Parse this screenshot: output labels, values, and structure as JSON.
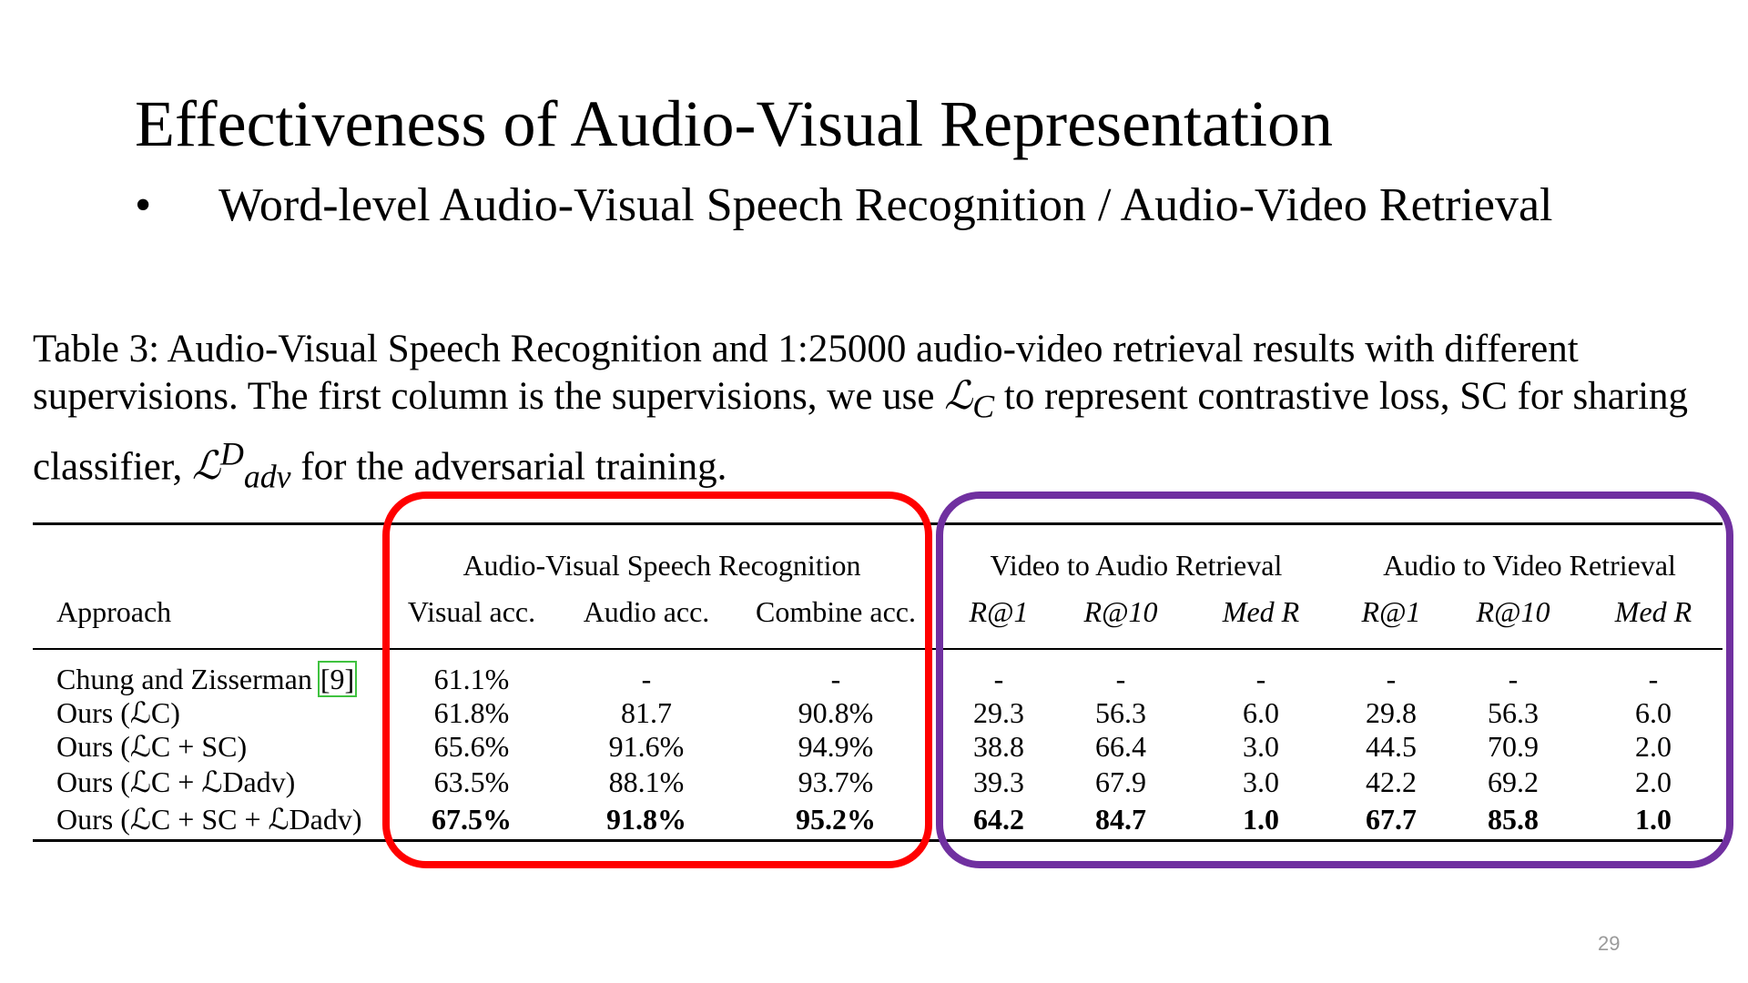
{
  "slide": {
    "title": "Effectiveness of Audio-Visual Representation",
    "bullet": "Word-level Audio-Visual Speech Recognition / Audio-Video Retrieval",
    "page_number": "29"
  },
  "caption": {
    "part1": "Table 3: Audio-Visual Speech Recognition and 1:25000 audio-video retrieval results with different supervisions. The first column is the supervisions, we use ",
    "lc": "ℒ",
    "lc_sub": "C",
    "part2": " to represent contrastive loss, SC for sharing classifier, ",
    "ladv": "ℒ",
    "ladv_sup": "D",
    "ladv_sub": "adv",
    "part3": " for the adversarial training."
  },
  "table": {
    "group_headers": [
      "Audio-Visual Speech Recognition",
      "Video to Audio Retrieval",
      "Audio to Video Retrieval"
    ],
    "columns": [
      "Approach",
      "Visual acc.",
      "Audio acc.",
      "Combine acc.",
      "R@1",
      "R@10",
      "Med R",
      "R@1",
      "R@10",
      "Med R"
    ],
    "rows": [
      {
        "approach": "Chung and Zisserman",
        "cite": "9",
        "values": [
          "61.1%",
          "-",
          "-",
          "-",
          "-",
          "-",
          "-",
          "-",
          "-"
        ]
      },
      {
        "approach": "Ours (ℒC)",
        "values": [
          "61.8%",
          "81.7",
          "90.8%",
          "29.3",
          "56.3",
          "6.0",
          "29.8",
          "56.3",
          "6.0"
        ]
      },
      {
        "approach": "Ours (ℒC + SC)",
        "values": [
          "65.6%",
          "91.6%",
          "94.9%",
          "38.8",
          "66.4",
          "3.0",
          "44.5",
          "70.9",
          "2.0"
        ]
      },
      {
        "approach": "Ours (ℒC + ℒDadv)",
        "values": [
          "63.5%",
          "88.1%",
          "93.7%",
          "39.3",
          "67.9",
          "3.0",
          "42.2",
          "69.2",
          "2.0"
        ]
      },
      {
        "approach": "Ours (ℒC + SC + ℒDadv)",
        "values": [
          "67.5%",
          "91.8%",
          "95.2%",
          "64.2",
          "84.7",
          "1.0",
          "67.7",
          "85.8",
          "1.0"
        ]
      }
    ]
  },
  "highlights": {
    "recognition_box_color": "#ff0000",
    "retrieval_box_color": "#7030a0"
  }
}
